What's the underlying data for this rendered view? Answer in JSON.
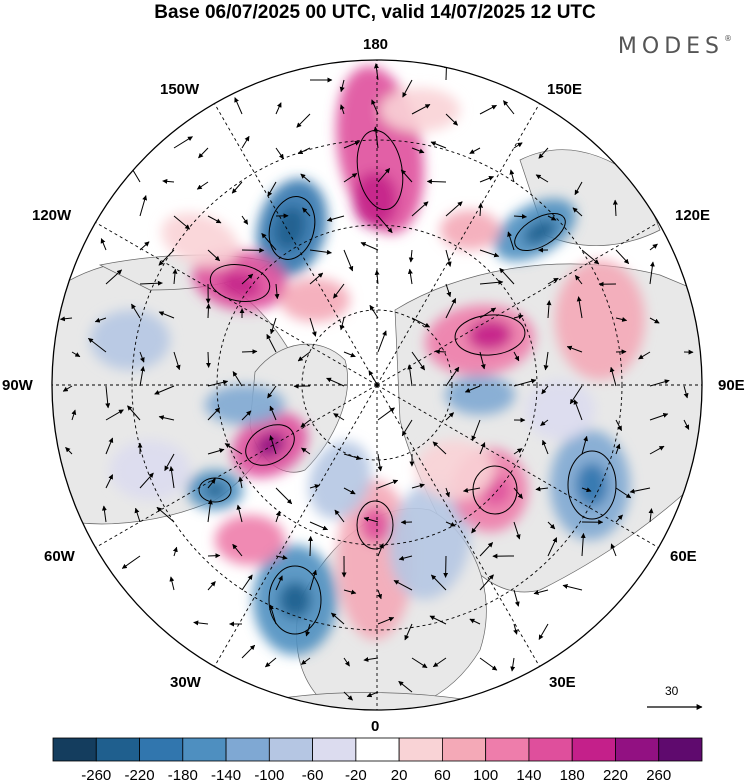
{
  "header": {
    "title": "Base 06/07/2025 00 UTC, valid 14/07/2025 12 UTC",
    "brand": "MODES",
    "brand_mark": "®"
  },
  "map": {
    "projection": "polar-stereographic-north",
    "longitude_labels": {
      "top": "180",
      "bottom": "0",
      "left": "90W",
      "right": "90E",
      "upper_left_1": "150W",
      "upper_left_2": "120W",
      "lower_left_1": "60W",
      "lower_left_2": "30W",
      "upper_right_1": "150E",
      "upper_right_2": "120E",
      "lower_right_1": "60E",
      "lower_right_2": "30E"
    },
    "reference_vector_label": "30",
    "colors": {
      "land": "#e8e8e8",
      "ocean": "#ffffff",
      "coast": "#666666"
    }
  },
  "colorbar": {
    "tick_labels": [
      "-260",
      "-220",
      "-180",
      "-140",
      "-100",
      "-60",
      "-20",
      "20",
      "60",
      "100",
      "140",
      "180",
      "220",
      "260"
    ],
    "colors": [
      "#143d5e",
      "#1f5f8e",
      "#3176ae",
      "#4e8fc0",
      "#7fa8d3",
      "#b5c6e3",
      "#dcdcef",
      "#ffffff",
      "#f9d3d6",
      "#f4a9b7",
      "#ee7dab",
      "#df4f9c",
      "#c4208a",
      "#921182",
      "#5f0a6e"
    ]
  }
}
